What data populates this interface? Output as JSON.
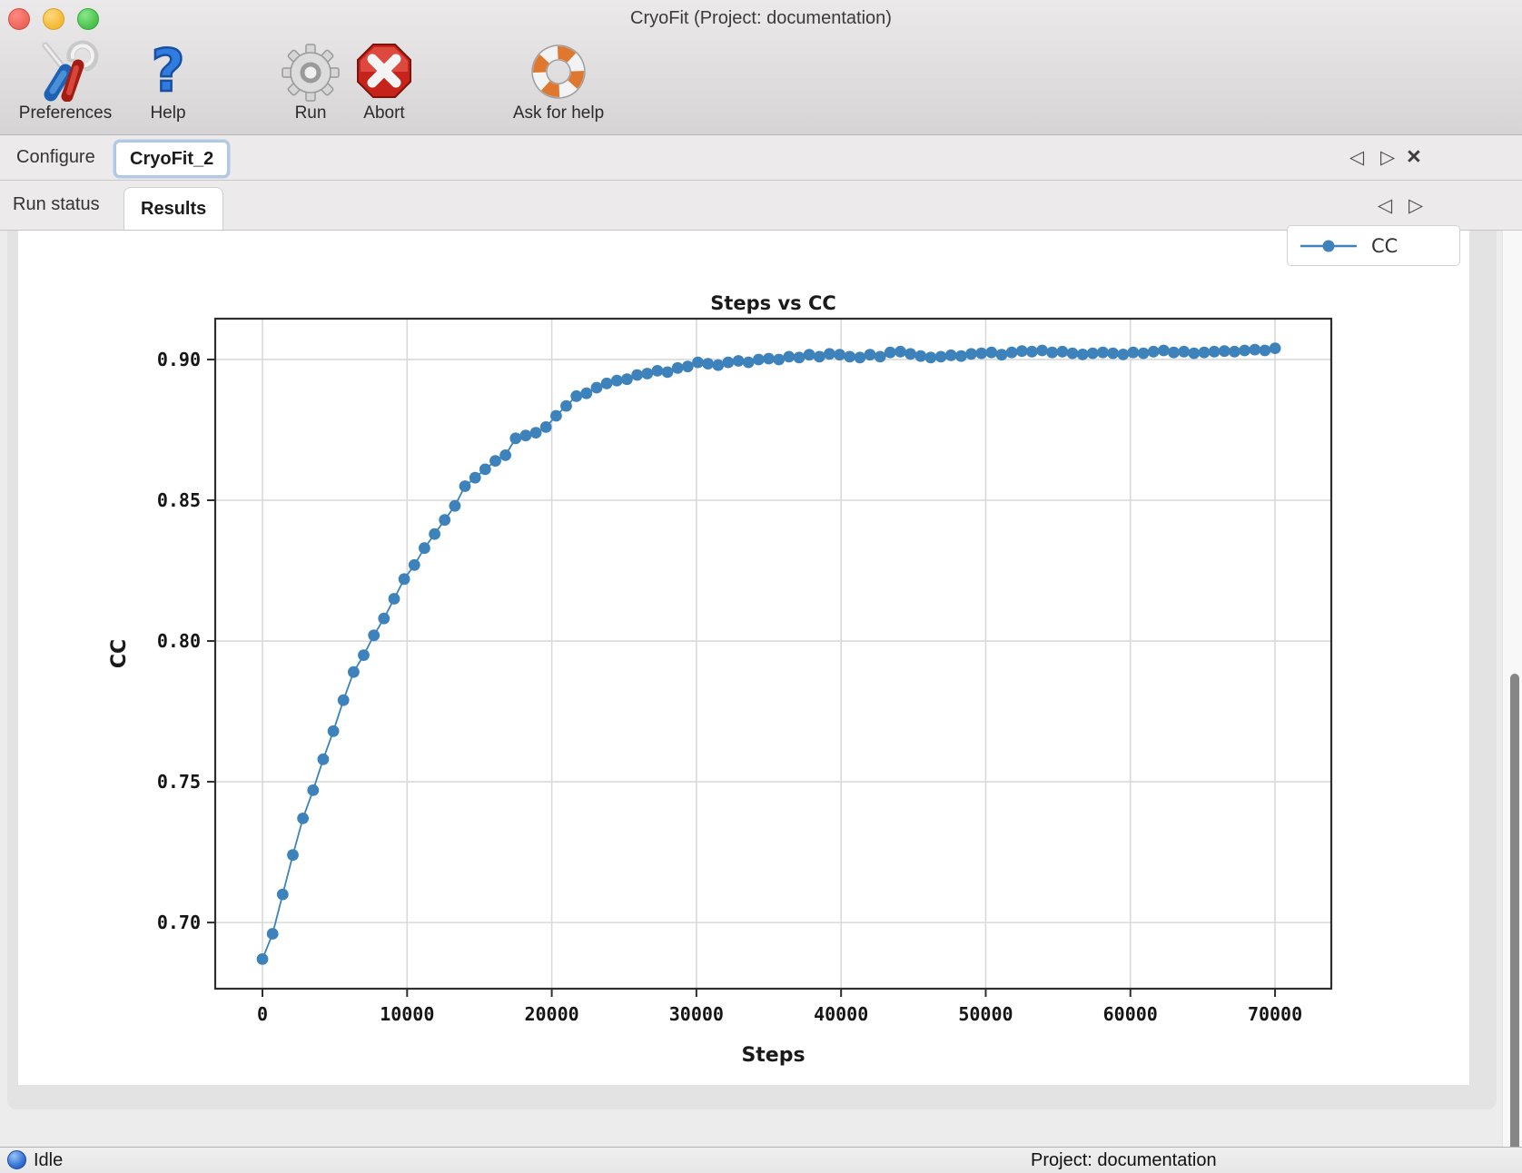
{
  "window": {
    "title": "CryoFit (Project: documentation)",
    "controls": {
      "close": "#ee6a5f",
      "minimize": "#f5bd3e",
      "zoom": "#52c554"
    }
  },
  "toolbar": {
    "items": [
      {
        "label": "Preferences",
        "icon": "tools-icon"
      },
      {
        "label": "Help",
        "icon": "question-mark-icon"
      },
      {
        "label": "Run",
        "icon": "gear-icon"
      },
      {
        "label": "Abort",
        "icon": "stop-icon"
      },
      {
        "label": "Ask for help",
        "icon": "lifebuoy-icon"
      }
    ]
  },
  "tabs": {
    "primary": [
      {
        "label": "Configure",
        "active": false
      },
      {
        "label": "CryoFit_2",
        "active": true
      }
    ],
    "secondary": [
      {
        "label": "Run status",
        "active": false
      },
      {
        "label": "Results",
        "active": true
      }
    ],
    "nav": {
      "left": "◁",
      "right": "▷",
      "close": "×"
    }
  },
  "statusbar": {
    "status": "Idle",
    "project": "Project: documentation"
  },
  "chart_data": {
    "type": "line",
    "title": "Steps vs CC",
    "xlabel": "Steps",
    "ylabel": "CC",
    "legend": [
      {
        "label": "CC",
        "color": "#3d82bb"
      }
    ],
    "legend_position": "upper right of figure",
    "grid": true,
    "marker": "o",
    "line_color": "#3d82bb",
    "xticks": [
      0,
      10000,
      20000,
      30000,
      40000,
      50000,
      60000,
      70000
    ],
    "yticks": [
      0.7,
      0.75,
      0.8,
      0.85,
      0.9
    ],
    "xtick_labels": [
      "0",
      "10000",
      "20000",
      "30000",
      "40000",
      "50000",
      "60000",
      "70000"
    ],
    "ytick_labels": [
      "0.70",
      "0.75",
      "0.80",
      "0.85",
      "0.90"
    ],
    "xlim": [
      -3265,
      73889
    ],
    "ylim": [
      0.6765,
      0.9145
    ],
    "series": [
      {
        "name": "CC",
        "x": [
          0,
          700,
          1400,
          2100,
          2800,
          3500,
          4200,
          4900,
          5600,
          6300,
          7000,
          7700,
          8400,
          9100,
          9800,
          10500,
          11200,
          11900,
          12600,
          13300,
          14000,
          14700,
          15400,
          16100,
          16800,
          17500,
          18200,
          18900,
          19600,
          20300,
          21000,
          21700,
          22400,
          23100,
          23800,
          24500,
          25200,
          25900,
          26600,
          27300,
          28000,
          28700,
          29400,
          30100,
          30800,
          31500,
          32200,
          32900,
          33600,
          34300,
          35000,
          35700,
          36400,
          37100,
          37800,
          38500,
          39200,
          39900,
          40600,
          41300,
          42000,
          42700,
          43400,
          44100,
          44800,
          45500,
          46200,
          46900,
          47600,
          48300,
          49000,
          49700,
          50400,
          51100,
          51800,
          52500,
          53200,
          53900,
          54600,
          55300,
          56000,
          56700,
          57400,
          58100,
          58800,
          59500,
          60200,
          60900,
          61600,
          62300,
          63000,
          63700,
          64400,
          65100,
          65800,
          66500,
          67200,
          67900,
          68600,
          69300,
          70000
        ],
        "y": [
          0.687,
          0.696,
          0.71,
          0.724,
          0.737,
          0.747,
          0.758,
          0.768,
          0.779,
          0.789,
          0.795,
          0.802,
          0.808,
          0.815,
          0.822,
          0.827,
          0.833,
          0.838,
          0.843,
          0.848,
          0.855,
          0.858,
          0.861,
          0.864,
          0.866,
          0.872,
          0.873,
          0.874,
          0.876,
          0.88,
          0.8835,
          0.887,
          0.888,
          0.89,
          0.8915,
          0.8925,
          0.893,
          0.8945,
          0.895,
          0.896,
          0.8955,
          0.897,
          0.8975,
          0.899,
          0.8985,
          0.898,
          0.899,
          0.8995,
          0.899,
          0.9,
          0.9003,
          0.9,
          0.901,
          0.9007,
          0.9017,
          0.901,
          0.902,
          0.9017,
          0.901,
          0.9007,
          0.9017,
          0.901,
          0.9025,
          0.9028,
          0.902,
          0.9012,
          0.9007,
          0.901,
          0.9015,
          0.9012,
          0.902,
          0.9022,
          0.9025,
          0.9017,
          0.9025,
          0.903,
          0.9028,
          0.9032,
          0.9025,
          0.9028,
          0.9022,
          0.9018,
          0.9022,
          0.9025,
          0.9022,
          0.9018,
          0.9025,
          0.9022,
          0.9028,
          0.9032,
          0.9025,
          0.9028,
          0.9022,
          0.9025,
          0.9028,
          0.903,
          0.9028,
          0.9032,
          0.9035,
          0.9032,
          0.904
        ]
      }
    ]
  }
}
